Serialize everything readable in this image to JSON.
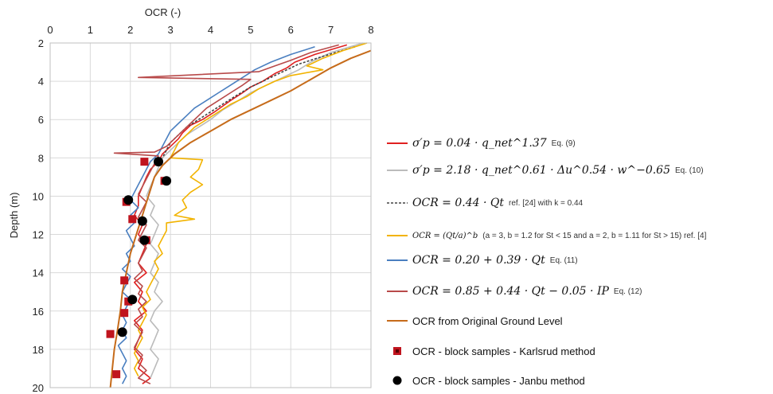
{
  "chart_data": {
    "type": "line",
    "title": "",
    "xlabel": "OCR (-)",
    "ylabel": "Depth (m)",
    "xlim": [
      0,
      8
    ],
    "ylim": [
      2,
      20
    ],
    "x_ticks": [
      "0",
      "1",
      "2",
      "3",
      "4",
      "5",
      "6",
      "7",
      "8"
    ],
    "y_ticks": [
      "2",
      "4",
      "6",
      "8",
      "10",
      "12",
      "14",
      "16",
      "18",
      "20"
    ],
    "x_axis_position": "top",
    "y_inverted": true,
    "grid": true,
    "legend_position": "right",
    "series": [
      {
        "key": "s9",
        "color": "#e02020",
        "style": "solid",
        "points": [
          [
            7.4,
            2.1
          ],
          [
            6.6,
            2.6
          ],
          [
            6.1,
            3.0
          ],
          [
            5.9,
            3.3
          ],
          [
            5.6,
            3.6
          ],
          [
            5.3,
            4.0
          ],
          [
            5.0,
            4.3
          ],
          [
            4.8,
            4.6
          ],
          [
            4.5,
            5.0
          ],
          [
            4.1,
            5.6
          ],
          [
            3.8,
            6.0
          ],
          [
            3.5,
            6.3
          ],
          [
            3.3,
            6.7
          ],
          [
            3.2,
            7.0
          ],
          [
            3.0,
            7.4
          ],
          [
            2.8,
            7.8
          ],
          [
            2.7,
            8.2
          ],
          [
            2.5,
            8.6
          ],
          [
            2.4,
            9.0
          ],
          [
            2.3,
            9.5
          ],
          [
            2.2,
            10.0
          ],
          [
            2.2,
            10.5
          ],
          [
            2.1,
            11.0
          ],
          [
            2.3,
            11.5
          ],
          [
            2.2,
            12.0
          ],
          [
            2.4,
            12.5
          ],
          [
            2.3,
            13.0
          ],
          [
            2.2,
            13.5
          ],
          [
            2.4,
            14.0
          ],
          [
            2.1,
            14.5
          ],
          [
            2.3,
            15.0
          ],
          [
            2.2,
            15.5
          ],
          [
            2.4,
            16.0
          ],
          [
            2.1,
            16.5
          ],
          [
            2.3,
            17.0
          ],
          [
            2.2,
            17.5
          ],
          [
            2.1,
            18.0
          ],
          [
            2.3,
            18.5
          ],
          [
            2.2,
            19.0
          ],
          [
            2.5,
            19.5
          ],
          [
            2.3,
            19.8
          ]
        ]
      },
      {
        "key": "s10",
        "color": "#bbbbbb",
        "style": "solid",
        "points": [
          [
            7.8,
            2.0
          ],
          [
            7.0,
            2.5
          ],
          [
            6.5,
            3.0
          ],
          [
            6.2,
            3.4
          ],
          [
            5.8,
            3.8
          ],
          [
            5.4,
            4.2
          ],
          [
            5.0,
            4.6
          ],
          [
            4.7,
            5.0
          ],
          [
            4.3,
            5.5
          ],
          [
            4.0,
            6.0
          ],
          [
            3.7,
            6.4
          ],
          [
            3.4,
            6.8
          ],
          [
            3.2,
            7.2
          ],
          [
            3.0,
            7.6
          ],
          [
            2.8,
            8.0
          ],
          [
            2.7,
            8.5
          ],
          [
            2.6,
            9.0
          ],
          [
            2.5,
            9.5
          ],
          [
            2.4,
            10.0
          ],
          [
            2.6,
            10.5
          ],
          [
            2.5,
            11.0
          ],
          [
            2.7,
            11.5
          ],
          [
            2.6,
            12.0
          ],
          [
            2.5,
            12.5
          ],
          [
            2.7,
            13.0
          ],
          [
            2.6,
            13.5
          ],
          [
            2.5,
            14.0
          ],
          [
            2.7,
            14.5
          ],
          [
            2.6,
            15.0
          ],
          [
            2.8,
            15.5
          ],
          [
            2.6,
            16.0
          ],
          [
            2.5,
            16.5
          ],
          [
            2.7,
            17.0
          ],
          [
            2.6,
            17.5
          ],
          [
            2.5,
            18.0
          ],
          [
            2.7,
            18.5
          ],
          [
            2.6,
            19.0
          ],
          [
            2.5,
            19.5
          ]
        ]
      },
      {
        "key": "s24",
        "color": "#444444",
        "style": "dashed",
        "points": [
          [
            7.6,
            2.2
          ],
          [
            6.8,
            2.7
          ],
          [
            6.2,
            3.1
          ],
          [
            5.8,
            3.5
          ],
          [
            5.4,
            3.9
          ],
          [
            5.0,
            4.3
          ],
          [
            4.6,
            4.8
          ],
          [
            4.3,
            5.2
          ],
          [
            4.0,
            5.6
          ],
          [
            3.7,
            6.0
          ],
          [
            3.4,
            6.4
          ],
          [
            3.2,
            6.8
          ],
          [
            3.0,
            7.2
          ],
          [
            2.9,
            7.6
          ],
          [
            2.8,
            8.0
          ]
        ]
      },
      {
        "key": "s4",
        "color": "#f2b300",
        "style": "solid",
        "points": [
          [
            7.9,
            2.0
          ],
          [
            7.3,
            2.4
          ],
          [
            6.8,
            2.8
          ],
          [
            6.4,
            3.2
          ],
          [
            6.8,
            3.4
          ],
          [
            6.0,
            3.7
          ],
          [
            5.6,
            4.0
          ],
          [
            5.2,
            4.4
          ],
          [
            4.9,
            4.8
          ],
          [
            4.5,
            5.2
          ],
          [
            4.2,
            5.6
          ],
          [
            3.9,
            6.0
          ],
          [
            3.6,
            6.4
          ],
          [
            3.4,
            6.8
          ],
          [
            3.2,
            7.2
          ],
          [
            3.1,
            7.6
          ],
          [
            3.0,
            8.0
          ],
          [
            3.8,
            8.1
          ],
          [
            3.7,
            8.6
          ],
          [
            3.5,
            9.0
          ],
          [
            3.8,
            9.4
          ],
          [
            3.5,
            9.8
          ],
          [
            3.3,
            10.2
          ],
          [
            3.4,
            10.6
          ],
          [
            3.1,
            11.0
          ],
          [
            3.6,
            11.2
          ],
          [
            2.9,
            11.4
          ],
          [
            2.9,
            11.8
          ],
          [
            2.8,
            12.2
          ],
          [
            2.7,
            12.6
          ],
          [
            2.8,
            13.0
          ],
          [
            2.6,
            13.4
          ],
          [
            2.7,
            13.8
          ],
          [
            2.6,
            14.2
          ],
          [
            2.5,
            14.6
          ],
          [
            2.4,
            15.0
          ],
          [
            2.5,
            15.4
          ],
          [
            2.3,
            15.8
          ],
          [
            2.4,
            16.2
          ],
          [
            2.3,
            16.6
          ],
          [
            2.2,
            17.0
          ],
          [
            2.3,
            17.4
          ],
          [
            2.2,
            17.8
          ],
          [
            2.1,
            18.2
          ],
          [
            2.2,
            18.6
          ],
          [
            2.1,
            19.0
          ],
          [
            2.2,
            19.4
          ]
        ]
      },
      {
        "key": "s11",
        "color": "#4a7fc0",
        "style": "solid",
        "points": [
          [
            6.6,
            2.2
          ],
          [
            6.0,
            2.6
          ],
          [
            5.5,
            3.0
          ],
          [
            5.1,
            3.4
          ],
          [
            4.8,
            3.8
          ],
          [
            4.5,
            4.2
          ],
          [
            4.2,
            4.6
          ],
          [
            3.9,
            5.0
          ],
          [
            3.6,
            5.4
          ],
          [
            3.4,
            5.8
          ],
          [
            3.2,
            6.2
          ],
          [
            3.0,
            6.6
          ],
          [
            2.9,
            7.0
          ],
          [
            2.8,
            7.4
          ],
          [
            2.7,
            7.8
          ],
          [
            2.5,
            8.2
          ],
          [
            2.4,
            8.6
          ],
          [
            2.3,
            9.0
          ],
          [
            2.2,
            9.4
          ],
          [
            2.1,
            9.8
          ],
          [
            2.0,
            10.2
          ],
          [
            2.2,
            10.6
          ],
          [
            2.0,
            11.0
          ],
          [
            2.1,
            11.4
          ],
          [
            1.9,
            11.8
          ],
          [
            2.0,
            12.2
          ],
          [
            2.1,
            12.6
          ],
          [
            1.9,
            13.0
          ],
          [
            2.0,
            13.4
          ],
          [
            1.8,
            13.8
          ],
          [
            2.0,
            14.2
          ],
          [
            1.9,
            14.6
          ],
          [
            1.8,
            15.0
          ],
          [
            2.0,
            15.4
          ],
          [
            1.9,
            15.8
          ],
          [
            1.8,
            16.2
          ],
          [
            1.9,
            16.6
          ],
          [
            1.8,
            17.0
          ],
          [
            1.9,
            17.4
          ],
          [
            1.7,
            17.8
          ],
          [
            1.8,
            18.2
          ],
          [
            1.9,
            18.6
          ],
          [
            1.8,
            19.0
          ],
          [
            1.9,
            19.4
          ],
          [
            1.8,
            19.8
          ]
        ]
      },
      {
        "key": "s12",
        "color": "#b84a4a",
        "style": "solid",
        "points": [
          [
            7.2,
            2.1
          ],
          [
            6.5,
            2.5
          ],
          [
            6.0,
            2.9
          ],
          [
            5.6,
            3.2
          ],
          [
            5.2,
            3.5
          ],
          [
            2.2,
            3.8
          ],
          [
            5.0,
            3.9
          ],
          [
            4.8,
            4.2
          ],
          [
            4.5,
            4.6
          ],
          [
            4.2,
            5.0
          ],
          [
            3.9,
            5.4
          ],
          [
            3.7,
            5.8
          ],
          [
            3.5,
            6.2
          ],
          [
            3.3,
            6.6
          ],
          [
            3.1,
            7.0
          ],
          [
            2.9,
            7.4
          ],
          [
            2.6,
            7.7
          ],
          [
            1.6,
            7.75
          ],
          [
            2.7,
            7.9
          ],
          [
            2.6,
            8.3
          ],
          [
            2.5,
            8.7
          ],
          [
            2.4,
            9.1
          ],
          [
            2.3,
            9.5
          ],
          [
            2.2,
            9.9
          ],
          [
            2.4,
            10.3
          ],
          [
            2.3,
            10.7
          ],
          [
            2.2,
            11.1
          ],
          [
            2.4,
            11.5
          ],
          [
            2.3,
            11.9
          ],
          [
            2.2,
            12.3
          ],
          [
            2.4,
            12.7
          ],
          [
            2.3,
            13.1
          ],
          [
            2.2,
            13.5
          ],
          [
            2.3,
            13.9
          ],
          [
            2.1,
            14.3
          ],
          [
            2.3,
            14.7
          ],
          [
            2.2,
            15.1
          ],
          [
            2.4,
            15.5
          ],
          [
            2.2,
            15.9
          ],
          [
            2.3,
            16.3
          ],
          [
            2.1,
            16.7
          ],
          [
            2.3,
            17.1
          ],
          [
            2.2,
            17.5
          ],
          [
            2.1,
            17.9
          ],
          [
            2.3,
            18.3
          ],
          [
            2.2,
            18.7
          ],
          [
            2.4,
            19.1
          ],
          [
            2.2,
            19.5
          ],
          [
            2.5,
            19.8
          ]
        ]
      },
      {
        "key": "ogl",
        "color": "#c66b1a",
        "style": "solid",
        "points": [
          [
            8.0,
            2.4
          ],
          [
            7.5,
            2.8
          ],
          [
            7.0,
            3.3
          ],
          [
            6.5,
            3.9
          ],
          [
            6.0,
            4.5
          ],
          [
            5.5,
            5.0
          ],
          [
            5.0,
            5.5
          ],
          [
            4.5,
            6.0
          ],
          [
            4.0,
            6.6
          ],
          [
            3.5,
            7.2
          ],
          [
            3.1,
            7.8
          ],
          [
            2.8,
            8.4
          ],
          [
            2.6,
            9.0
          ],
          [
            2.45,
            10.0
          ],
          [
            2.3,
            11.0
          ],
          [
            2.15,
            12.0
          ],
          [
            2.0,
            13.0
          ],
          [
            1.9,
            14.0
          ],
          [
            1.8,
            15.0
          ],
          [
            1.75,
            16.0
          ],
          [
            1.68,
            17.0
          ],
          [
            1.6,
            18.0
          ],
          [
            1.55,
            19.0
          ],
          [
            1.5,
            20.0
          ]
        ]
      }
    ],
    "karlsrud_points": [
      [
        2.35,
        8.2
      ],
      [
        2.85,
        9.2
      ],
      [
        1.9,
        10.3
      ],
      [
        2.05,
        11.2
      ],
      [
        2.4,
        12.3
      ],
      [
        1.85,
        14.4
      ],
      [
        1.95,
        15.5
      ],
      [
        1.85,
        16.1
      ],
      [
        1.5,
        17.2
      ],
      [
        1.65,
        19.3
      ]
    ],
    "janbu_points": [
      [
        2.7,
        8.2
      ],
      [
        2.9,
        9.2
      ],
      [
        1.95,
        10.2
      ],
      [
        2.3,
        11.3
      ],
      [
        2.35,
        12.3
      ],
      [
        2.05,
        15.4
      ],
      [
        1.8,
        17.1
      ]
    ]
  },
  "legend": [
    {
      "key": "s9",
      "eq": "σ′p = 0.04 · q_net^1.37",
      "ref": "Eq. (9)",
      "color": "#e02020",
      "style": "line"
    },
    {
      "key": "s10",
      "eq": "σ′p = 2.18 · q_net^0.61 · Δu^0.54 · w^−0.65",
      "ref": "Eq. (10)",
      "color": "#bbbbbb",
      "style": "line"
    },
    {
      "key": "s24",
      "eq": "OCR = 0.44 · Qt",
      "ref": "ref. [24] with k = 0.44",
      "color": "#444444",
      "style": "dashed"
    },
    {
      "key": "s4",
      "eq": "OCR = (Qt/a)^b",
      "ref": "(a = 3, b = 1.2 for St < 15 and a = 2, b = 1.11 for St > 15)  ref. [4]",
      "color": "#f2b300",
      "style": "line"
    },
    {
      "key": "s11",
      "eq": "OCR = 0.20 + 0.39 · Qt",
      "ref": "Eq. (11)",
      "color": "#4a7fc0",
      "style": "line"
    },
    {
      "key": "s12",
      "eq": "OCR = 0.85 + 0.44 · Qt − 0.05 · IP",
      "ref": "Eq. (12)",
      "color": "#b84a4a",
      "style": "line"
    },
    {
      "key": "ogl",
      "text": "OCR from Original Ground Level",
      "color": "#c66b1a",
      "style": "line"
    },
    {
      "key": "karlsrud",
      "text": "OCR - block samples - Karlsrud method",
      "color": "#c0141e",
      "style": "square"
    },
    {
      "key": "janbu",
      "text": "OCR - block samples - Janbu method",
      "color": "#000000",
      "style": "dot"
    }
  ]
}
